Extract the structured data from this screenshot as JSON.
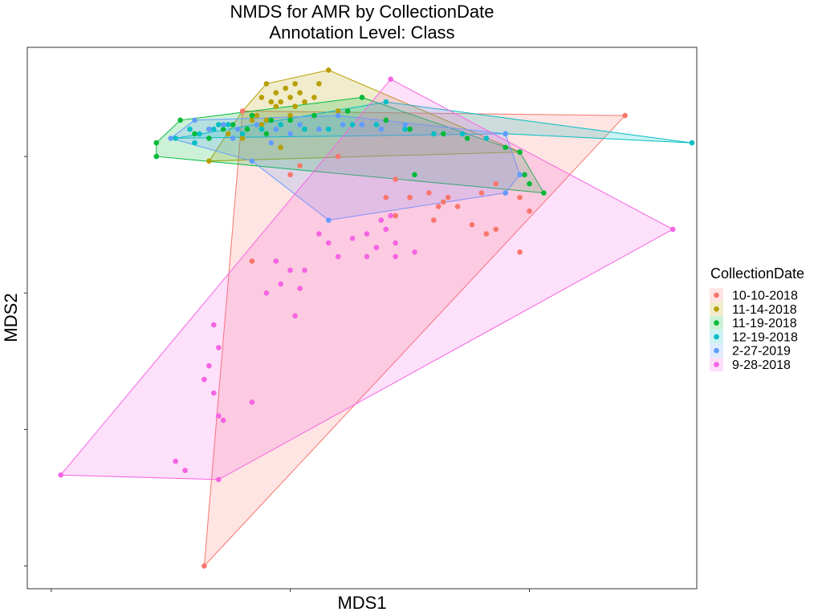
{
  "chart_data": {
    "type": "scatter",
    "title": "NMDS for AMR by CollectionDate",
    "subtitle": "Annotation Level: Class",
    "xlabel": "MDS1",
    "ylabel": "MDS2",
    "xlim": [
      -0.05,
      1.35
    ],
    "ylim": [
      -0.05,
      1.14
    ],
    "grid": false,
    "legend": {
      "title": "CollectionDate",
      "position": "right",
      "entries": [
        "10-10-2018",
        "11-14-2018",
        "11-19-2018",
        "12-19-2018",
        "2-27-2019",
        "9-28-2018"
      ]
    },
    "series": [
      {
        "name": "10-10-2018",
        "color": "#F8766D",
        "hull": [
          [
            0.32,
            0.0
          ],
          [
            1.2,
            0.99
          ],
          [
            0.4,
            1.0
          ]
        ],
        "points": [
          [
            0.32,
            0.0
          ],
          [
            1.2,
            0.99
          ],
          [
            0.4,
            1.0
          ],
          [
            0.42,
            0.67
          ],
          [
            0.72,
            0.85
          ],
          [
            0.75,
            0.81
          ],
          [
            0.52,
            0.88
          ],
          [
            0.5,
            0.86
          ],
          [
            0.6,
            0.9
          ],
          [
            0.82,
            0.8
          ],
          [
            0.85,
            0.79
          ],
          [
            0.9,
            0.82
          ],
          [
            0.93,
            0.84
          ],
          [
            0.98,
            0.81
          ],
          [
            0.93,
            0.74
          ],
          [
            0.75,
            0.81
          ],
          [
            0.79,
            0.82
          ],
          [
            0.8,
            0.76
          ],
          [
            0.83,
            0.81
          ],
          [
            0.81,
            0.79
          ],
          [
            0.88,
            0.75
          ],
          [
            0.91,
            0.73
          ],
          [
            0.98,
            0.69
          ],
          [
            1.0,
            0.78
          ],
          [
            0.72,
            0.77
          ],
          [
            0.7,
            0.81
          ]
        ]
      },
      {
        "name": "11-14-2018",
        "color": "#B79F00",
        "hull": [
          [
            0.33,
            0.89
          ],
          [
            0.4,
            1.0
          ],
          [
            0.45,
            1.06
          ],
          [
            0.58,
            1.09
          ],
          [
            0.98,
            0.91
          ]
        ],
        "points": [
          [
            0.33,
            0.89
          ],
          [
            0.45,
            1.06
          ],
          [
            0.58,
            1.09
          ],
          [
            0.98,
            0.91
          ],
          [
            0.47,
            1.04
          ],
          [
            0.49,
            1.05
          ],
          [
            0.51,
            1.06
          ],
          [
            0.48,
            1.02
          ],
          [
            0.5,
            1.03
          ],
          [
            0.52,
            1.04
          ],
          [
            0.46,
            1.02
          ],
          [
            0.53,
            1.02
          ],
          [
            0.55,
            1.03
          ],
          [
            0.51,
            1.01
          ],
          [
            0.47,
            1.01
          ],
          [
            0.42,
            0.98
          ],
          [
            0.44,
            0.97
          ],
          [
            0.43,
            0.99
          ],
          [
            0.5,
            0.99
          ],
          [
            0.56,
            1.06
          ],
          [
            0.44,
            1.03
          ],
          [
            0.6,
            1.0
          ],
          [
            0.45,
            0.98
          ],
          [
            0.37,
            0.95
          ],
          [
            0.4,
            0.94
          ],
          [
            0.48,
            0.92
          ]
        ]
      },
      {
        "name": "11-19-2018",
        "color": "#00BA38",
        "hull": [
          [
            0.22,
            0.93
          ],
          [
            0.27,
            0.98
          ],
          [
            0.65,
            1.03
          ],
          [
            0.98,
            0.91
          ],
          [
            1.03,
            0.82
          ],
          [
            0.22,
            0.9
          ]
        ],
        "points": [
          [
            0.22,
            0.93
          ],
          [
            0.27,
            0.98
          ],
          [
            0.65,
            1.03
          ],
          [
            0.98,
            0.91
          ],
          [
            1.03,
            0.82
          ],
          [
            0.22,
            0.9
          ],
          [
            0.3,
            0.95
          ],
          [
            0.36,
            0.96
          ],
          [
            0.38,
            0.97
          ],
          [
            0.42,
            0.99
          ],
          [
            0.46,
            0.98
          ],
          [
            0.5,
            0.98
          ],
          [
            0.55,
            0.99
          ],
          [
            0.62,
            1.0
          ],
          [
            0.7,
            0.98
          ],
          [
            0.75,
            0.96
          ],
          [
            0.82,
            0.95
          ],
          [
            0.87,
            0.94
          ],
          [
            0.95,
            0.92
          ],
          [
            0.99,
            0.86
          ],
          [
            1.0,
            0.84
          ],
          [
            0.76,
            0.86
          ],
          [
            0.41,
            0.96
          ],
          [
            0.45,
            0.95
          ],
          [
            0.33,
            0.94
          ]
        ]
      },
      {
        "name": "12-19-2018",
        "color": "#00BFC4",
        "hull": [
          [
            0.26,
            0.94
          ],
          [
            0.95,
            0.95
          ],
          [
            1.34,
            0.93
          ],
          [
            0.7,
            1.02
          ]
        ],
        "points": [
          [
            0.26,
            0.94
          ],
          [
            0.95,
            0.95
          ],
          [
            1.34,
            0.93
          ],
          [
            0.7,
            1.02
          ],
          [
            0.29,
            0.96
          ],
          [
            0.31,
            0.95
          ],
          [
            0.34,
            0.96
          ],
          [
            0.37,
            0.97
          ],
          [
            0.4,
            0.95
          ],
          [
            0.44,
            0.96
          ],
          [
            0.48,
            0.97
          ],
          [
            0.53,
            0.96
          ],
          [
            0.58,
            0.96
          ],
          [
            0.63,
            0.97
          ],
          [
            0.68,
            0.97
          ],
          [
            0.74,
            0.96
          ],
          [
            0.8,
            0.95
          ],
          [
            0.86,
            0.95
          ],
          [
            0.91,
            0.94
          ],
          [
            0.35,
            0.97
          ],
          [
            0.3,
            0.93
          ]
        ]
      },
      {
        "name": "2-27-2019",
        "color": "#619CFF",
        "hull": [
          [
            0.25,
            0.94
          ],
          [
            0.3,
            0.98
          ],
          [
            0.6,
            0.99
          ],
          [
            0.95,
            0.95
          ],
          [
            0.98,
            0.86
          ],
          [
            0.95,
            0.82
          ],
          [
            0.58,
            0.76
          ],
          [
            0.42,
            0.89
          ]
        ],
        "points": [
          [
            0.25,
            0.94
          ],
          [
            0.3,
            0.98
          ],
          [
            0.6,
            0.99
          ],
          [
            0.95,
            0.95
          ],
          [
            0.98,
            0.86
          ],
          [
            0.95,
            0.82
          ],
          [
            0.58,
            0.76
          ],
          [
            0.42,
            0.89
          ],
          [
            0.33,
            0.96
          ],
          [
            0.36,
            0.97
          ],
          [
            0.39,
            0.96
          ],
          [
            0.43,
            0.97
          ],
          [
            0.47,
            0.96
          ],
          [
            0.52,
            0.97
          ],
          [
            0.56,
            0.96
          ],
          [
            0.61,
            0.97
          ],
          [
            0.65,
            0.97
          ],
          [
            0.69,
            0.96
          ],
          [
            0.74,
            0.97
          ],
          [
            0.46,
            0.93
          ],
          [
            0.38,
            0.94
          ],
          [
            0.5,
            0.95
          ]
        ]
      },
      {
        "name": "9-28-2018",
        "color": "#F564E3",
        "hull": [
          [
            0.02,
            0.2
          ],
          [
            0.35,
            0.19
          ],
          [
            1.3,
            0.74
          ],
          [
            0.71,
            1.07
          ]
        ],
        "points": [
          [
            0.02,
            0.2
          ],
          [
            0.35,
            0.19
          ],
          [
            1.3,
            0.74
          ],
          [
            0.71,
            1.07
          ],
          [
            0.28,
            0.21
          ],
          [
            0.26,
            0.23
          ],
          [
            0.35,
            0.33
          ],
          [
            0.36,
            0.32
          ],
          [
            0.42,
            0.36
          ],
          [
            0.34,
            0.38
          ],
          [
            0.32,
            0.41
          ],
          [
            0.33,
            0.44
          ],
          [
            0.35,
            0.48
          ],
          [
            0.34,
            0.53
          ],
          [
            0.51,
            0.55
          ],
          [
            0.45,
            0.6
          ],
          [
            0.48,
            0.62
          ],
          [
            0.52,
            0.61
          ],
          [
            0.5,
            0.65
          ],
          [
            0.47,
            0.67
          ],
          [
            0.53,
            0.65
          ],
          [
            0.56,
            0.73
          ],
          [
            0.58,
            0.71
          ],
          [
            0.6,
            0.68
          ],
          [
            0.63,
            0.72
          ],
          [
            0.68,
            0.7
          ],
          [
            0.69,
            0.76
          ],
          [
            0.72,
            0.71
          ],
          [
            0.7,
            0.74
          ],
          [
            0.72,
            0.68
          ],
          [
            0.76,
            0.69
          ],
          [
            0.66,
            0.73
          ],
          [
            0.66,
            0.68
          ],
          [
            0.71,
            0.77
          ]
        ]
      }
    ]
  }
}
